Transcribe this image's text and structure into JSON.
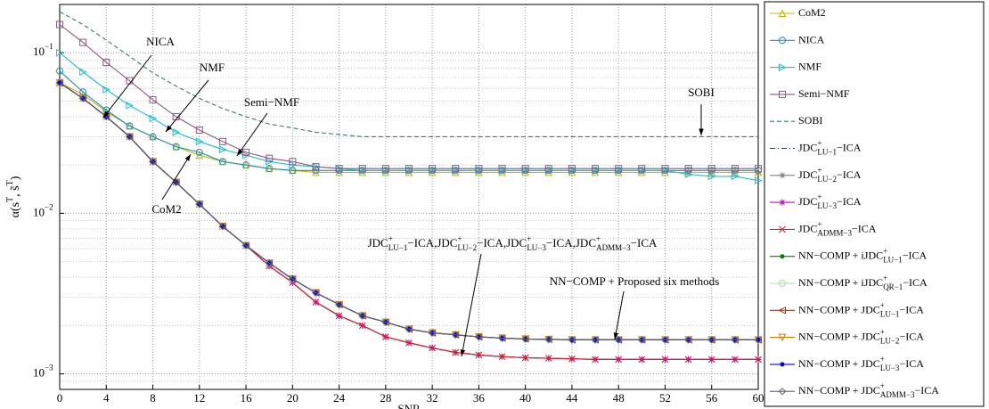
{
  "chart_data": {
    "type": "line",
    "x_label": "SNR",
    "y_label": [
      "α(s",
      "T",
      ", s̃",
      "T",
      ")"
    ],
    "yscale": "log",
    "grid": true,
    "minor_grid": true,
    "legend": "outside-right",
    "xlim": [
      0,
      60
    ],
    "xticks": [
      0,
      4,
      8,
      12,
      16,
      20,
      24,
      28,
      32,
      36,
      40,
      44,
      48,
      52,
      56,
      60
    ],
    "ylim": [
      0.0008,
      0.2
    ],
    "yticks": [
      {
        "value": 0.001,
        "label": [
          "10",
          "−3"
        ]
      },
      {
        "value": 0.01,
        "label": [
          "10",
          "−2"
        ]
      },
      {
        "value": 0.1,
        "label": [
          "10",
          "−1"
        ]
      }
    ],
    "x": [
      0,
      2,
      4,
      6,
      8,
      10,
      12,
      14,
      16,
      18,
      20,
      22,
      24,
      26,
      28,
      30,
      32,
      34,
      36,
      38,
      40,
      42,
      44,
      46,
      48,
      50,
      52,
      54,
      56,
      58,
      60
    ],
    "series": [
      {
        "name": "CoM2",
        "color": "#c8b400",
        "marker": "tri-up",
        "dash": "solid",
        "values": [
          0.065,
          0.055,
          0.043,
          0.035,
          0.03,
          0.026,
          0.023,
          0.021,
          0.02,
          0.019,
          0.0185,
          0.018,
          0.018,
          0.018,
          0.018,
          0.018,
          0.018,
          0.018,
          0.018,
          0.018,
          0.018,
          0.018,
          0.018,
          0.018,
          0.018,
          0.018,
          0.018,
          0.018,
          0.018,
          0.018,
          0.018
        ]
      },
      {
        "name": "NICA",
        "color": "#1e8fc0",
        "marker": "circle",
        "dash": "solid",
        "values": [
          0.077,
          0.057,
          0.044,
          0.035,
          0.03,
          0.026,
          0.024,
          0.021,
          0.02,
          0.019,
          0.0185,
          0.0185,
          0.0185,
          0.0185,
          0.0185,
          0.0185,
          0.0185,
          0.0185,
          0.0185,
          0.0185,
          0.0185,
          0.0185,
          0.0185,
          0.0185,
          0.0185,
          0.0185,
          0.0185,
          0.0185,
          0.0185,
          0.0185,
          0.0185
        ]
      },
      {
        "name": "NMF",
        "color": "#20c0d0",
        "marker": "tri-right",
        "dash": "solid",
        "values": [
          0.1,
          0.076,
          0.059,
          0.047,
          0.039,
          0.032,
          0.028,
          0.025,
          0.023,
          0.021,
          0.02,
          0.0195,
          0.019,
          0.0185,
          0.0185,
          0.0185,
          0.0185,
          0.0185,
          0.0185,
          0.0185,
          0.0185,
          0.0185,
          0.0185,
          0.0185,
          0.0185,
          0.0185,
          0.0185,
          0.0175,
          0.017,
          0.017,
          0.016
        ]
      },
      {
        "name": "Semi−NMF",
        "color": "#8a5a80",
        "marker": "square",
        "dash": "solid",
        "values": [
          0.15,
          0.116,
          0.087,
          0.067,
          0.051,
          0.04,
          0.033,
          0.028,
          0.024,
          0.022,
          0.021,
          0.0195,
          0.019,
          0.019,
          0.019,
          0.019,
          0.019,
          0.019,
          0.019,
          0.019,
          0.019,
          0.019,
          0.019,
          0.019,
          0.019,
          0.019,
          0.019,
          0.019,
          0.019,
          0.019,
          0.019
        ]
      },
      {
        "name": "SOBI",
        "color": "#3a7a70",
        "marker": "none",
        "dash": "dashed",
        "values": [
          0.18,
          0.15,
          0.12,
          0.095,
          0.075,
          0.062,
          0.052,
          0.045,
          0.04,
          0.036,
          0.034,
          0.032,
          0.031,
          0.03,
          0.03,
          0.03,
          0.03,
          0.03,
          0.03,
          0.03,
          0.03,
          0.03,
          0.03,
          0.03,
          0.03,
          0.03,
          0.03,
          0.03,
          0.03,
          0.03,
          0.03
        ]
      },
      {
        "name": [
          "JDC",
          "+",
          "LU−1",
          "−ICA"
        ],
        "color": "#1a3f80",
        "marker": "none",
        "dash": "dashdot",
        "values": [
          0.065,
          0.052,
          0.04,
          0.03,
          0.021,
          0.0156,
          0.0114,
          0.0083,
          0.0063,
          0.0047,
          0.0037,
          0.0028,
          0.0023,
          0.002,
          0.0017,
          0.00156,
          0.00145,
          0.00136,
          0.00131,
          0.00128,
          0.00126,
          0.00125,
          0.00124,
          0.00123,
          0.00123,
          0.00123,
          0.00123,
          0.00123,
          0.00123,
          0.00123,
          0.00123
        ]
      },
      {
        "name": [
          "JDC",
          "+",
          "LU−2",
          "−ICA"
        ],
        "color": "#808080",
        "marker": "star",
        "dash": "solid",
        "values": [
          0.065,
          0.052,
          0.04,
          0.03,
          0.021,
          0.0156,
          0.0114,
          0.0083,
          0.0063,
          0.0047,
          0.0037,
          0.0028,
          0.0023,
          0.002,
          0.0017,
          0.00156,
          0.00145,
          0.00136,
          0.00131,
          0.00128,
          0.00126,
          0.00125,
          0.00124,
          0.00123,
          0.00123,
          0.00123,
          0.00123,
          0.00123,
          0.00123,
          0.00123,
          0.00123
        ]
      },
      {
        "name": [
          "JDC",
          "+",
          "LU−3",
          "−ICA"
        ],
        "color": "#cc00cc",
        "marker": "star",
        "dash": "solid",
        "values": [
          0.065,
          0.052,
          0.04,
          0.03,
          0.021,
          0.0156,
          0.0114,
          0.0083,
          0.0063,
          0.0047,
          0.0037,
          0.0028,
          0.0023,
          0.002,
          0.0017,
          0.00156,
          0.00145,
          0.00136,
          0.00131,
          0.00128,
          0.00126,
          0.00125,
          0.00124,
          0.00123,
          0.00123,
          0.00123,
          0.00123,
          0.00123,
          0.00123,
          0.00123,
          0.00123
        ]
      },
      {
        "name": [
          "JDC",
          "+",
          "ADMM−3",
          "−ICA"
        ],
        "color": "#e02020",
        "marker": "x",
        "dash": "solid",
        "values": [
          0.065,
          0.052,
          0.04,
          0.03,
          0.021,
          0.0156,
          0.0114,
          0.0083,
          0.0063,
          0.0047,
          0.0037,
          0.0028,
          0.0023,
          0.002,
          0.0017,
          0.00156,
          0.00145,
          0.00136,
          0.00131,
          0.00128,
          0.00126,
          0.00125,
          0.00124,
          0.00123,
          0.00123,
          0.00123,
          0.00123,
          0.00123,
          0.00123,
          0.00123,
          0.00123
        ]
      },
      {
        "name": [
          "NN−COMP + iJDC",
          "+",
          "LU−1",
          "−ICA"
        ],
        "color": "#008000",
        "marker": "dot",
        "dash": "solid",
        "values": [
          0.065,
          0.052,
          0.04,
          0.03,
          0.021,
          0.0156,
          0.0114,
          0.0083,
          0.0063,
          0.0049,
          0.0039,
          0.0032,
          0.0027,
          0.0023,
          0.0021,
          0.0019,
          0.0018,
          0.00175,
          0.0017,
          0.00167,
          0.00165,
          0.00164,
          0.00163,
          0.00163,
          0.00163,
          0.00163,
          0.00163,
          0.00163,
          0.00163,
          0.00163,
          0.00163
        ]
      },
      {
        "name": [
          "NN−COMP + iJDC",
          "+",
          "QR−1",
          "−ICA"
        ],
        "color": "#a8e0a8",
        "marker": "circle",
        "dash": "solid",
        "values": [
          0.065,
          0.052,
          0.04,
          0.03,
          0.021,
          0.0156,
          0.0114,
          0.0083,
          0.0063,
          0.0049,
          0.0039,
          0.0032,
          0.0027,
          0.0023,
          0.0021,
          0.0019,
          0.0018,
          0.00175,
          0.0017,
          0.00167,
          0.00165,
          0.00164,
          0.00163,
          0.00163,
          0.00163,
          0.00163,
          0.00163,
          0.00163,
          0.00163,
          0.00163,
          0.00163
        ]
      },
      {
        "name": [
          "NN−COMP + JDC",
          "+",
          "LU−1",
          "−ICA"
        ],
        "color": "#a03a10",
        "marker": "tri-left",
        "dash": "solid",
        "values": [
          0.065,
          0.052,
          0.04,
          0.03,
          0.021,
          0.0156,
          0.0114,
          0.0083,
          0.0063,
          0.0049,
          0.0039,
          0.0032,
          0.0027,
          0.0023,
          0.0021,
          0.0019,
          0.0018,
          0.00175,
          0.0017,
          0.00167,
          0.00165,
          0.00164,
          0.00163,
          0.00163,
          0.00163,
          0.00163,
          0.00163,
          0.00163,
          0.00163,
          0.00163,
          0.00163
        ]
      },
      {
        "name": [
          "NN−COMP + JDC",
          "+",
          "LU−2",
          "−ICA"
        ],
        "color": "#d08000",
        "marker": "tri-down",
        "dash": "solid",
        "values": [
          0.065,
          0.052,
          0.04,
          0.03,
          0.021,
          0.0156,
          0.0114,
          0.0083,
          0.0063,
          0.0049,
          0.0039,
          0.0032,
          0.0027,
          0.0023,
          0.0021,
          0.0019,
          0.0018,
          0.00175,
          0.0017,
          0.00167,
          0.00165,
          0.00164,
          0.00163,
          0.00163,
          0.00163,
          0.00163,
          0.00163,
          0.00163,
          0.00163,
          0.00163,
          0.00163
        ]
      },
      {
        "name": [
          "NN−COMP + JDC",
          "+",
          "LU−3",
          "−ICA"
        ],
        "color": "#0000e0",
        "marker": "dot",
        "dash": "solid",
        "values": [
          0.065,
          0.052,
          0.04,
          0.03,
          0.021,
          0.0156,
          0.0114,
          0.0083,
          0.0063,
          0.0049,
          0.0039,
          0.0032,
          0.0027,
          0.0023,
          0.0021,
          0.0019,
          0.0018,
          0.00175,
          0.0017,
          0.00167,
          0.00165,
          0.00164,
          0.00163,
          0.00163,
          0.00163,
          0.00163,
          0.00163,
          0.00163,
          0.00163,
          0.00163,
          0.00163
        ]
      },
      {
        "name": [
          "NN−COMP + JDC",
          "+",
          "ADMM−3",
          "−ICA"
        ],
        "color": "#606070",
        "marker": "diamond",
        "dash": "solid",
        "values": [
          0.065,
          0.052,
          0.04,
          0.03,
          0.021,
          0.0156,
          0.0114,
          0.0083,
          0.0063,
          0.0049,
          0.0039,
          0.0032,
          0.0027,
          0.0023,
          0.0021,
          0.0019,
          0.0018,
          0.00175,
          0.0017,
          0.00167,
          0.00165,
          0.00164,
          0.00163,
          0.00163,
          0.00163,
          0.00163,
          0.00163,
          0.00163,
          0.00163,
          0.00163,
          0.00163
        ]
      }
    ],
    "annotations": [
      {
        "text": "NICA"
      },
      {
        "text": "NMF"
      },
      {
        "text": "Semi−NMF"
      },
      {
        "text": "SOBI"
      },
      {
        "text": "CoM2"
      },
      {
        "text": [
          [
            "JDC",
            "+",
            "LU−1",
            "−ICA,"
          ],
          [
            "JDC",
            "+",
            "LU−2",
            "−ICA,"
          ],
          [
            "JDC",
            "+",
            "LU−3",
            "−ICA,"
          ],
          [
            "JDC",
            "+",
            "ADMM−3",
            "−ICA"
          ]
        ]
      },
      {
        "text": "NN−COMP + Proposed six methods"
      }
    ]
  }
}
